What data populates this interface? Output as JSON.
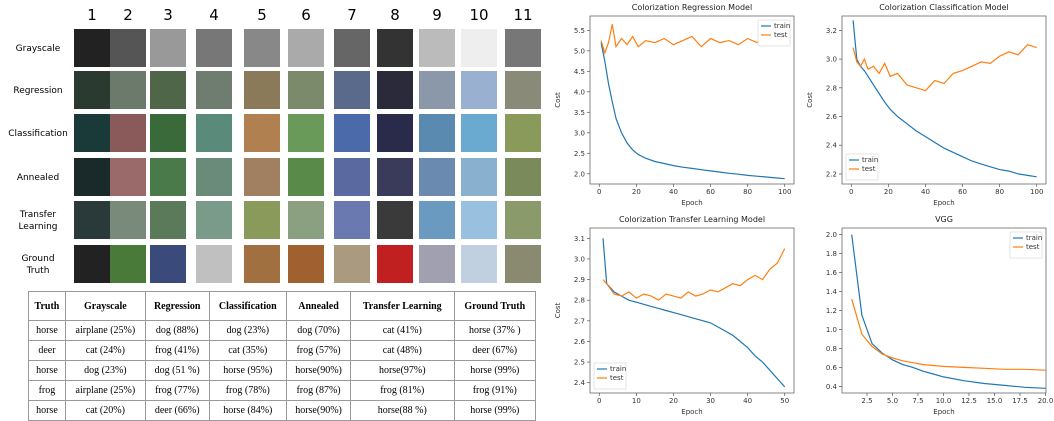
{
  "figure": {
    "column_numbers": [
      1,
      2,
      3,
      4,
      5,
      6,
      7,
      8,
      9,
      10,
      11
    ],
    "row_labels": [
      "Grayscale",
      "Regression",
      "Classification",
      "Annealed",
      "Transfer Learning",
      "Ground Truth"
    ]
  },
  "table": {
    "header": [
      "Truth",
      "Grayscale",
      "Regression",
      "Classification",
      "Annealed",
      "Transfer Learning",
      "Ground Truth"
    ],
    "rows": [
      [
        "horse",
        "airplane (25%)",
        "dog (88%)",
        "dog (23%)",
        "dog (70%)",
        "cat (41%)",
        "horse (37% )"
      ],
      [
        "deer",
        "cat (24%)",
        "frog (41%)",
        "cat (35%)",
        "frog (57%)",
        "cat (48%)",
        "deer (67%)"
      ],
      [
        "horse",
        "dog (23%)",
        "dog (51 %)",
        "horse (95%)",
        "horse(90%)",
        "horse(97%)",
        "horse (99%)"
      ],
      [
        "frog",
        "airplane (25%)",
        "frog (77%)",
        "frog (78%)",
        "frog (87%)",
        "frog (81%)",
        "frog (91%)"
      ],
      [
        "horse",
        "cat (20%)",
        "deer (66%)",
        "horse (84%)",
        "horse(90%)",
        "horse(88 %)",
        "horse (99%)"
      ]
    ]
  },
  "chart_data": [
    {
      "type": "line",
      "title": "Colorization Regression Model",
      "x_label": "Epoch",
      "y_label": "Cost",
      "legend": "upper right",
      "xlim": [
        -5,
        105
      ],
      "ylim": [
        1.75,
        5.85
      ],
      "xticks": [
        0,
        20,
        40,
        60,
        80,
        100
      ],
      "yticks": [
        {
          "value": 2,
          "label": "2.0"
        },
        2.5,
        {
          "value": 3,
          "label": "3.0"
        },
        3.5,
        {
          "value": 4,
          "label": "4.0"
        },
        4.5,
        {
          "value": 5,
          "label": "5.0"
        },
        5.5
      ],
      "x": [
        1,
        3,
        5,
        7,
        9,
        12,
        15,
        18,
        21,
        25,
        30,
        35,
        40,
        45,
        50,
        55,
        60,
        65,
        70,
        75,
        80,
        85,
        90,
        95,
        100
      ],
      "series": [
        {
          "name": "train",
          "color": "#1f77b4",
          "values": [
            5.2,
            4.75,
            4.2,
            3.75,
            3.35,
            3.0,
            2.75,
            2.58,
            2.47,
            2.38,
            2.3,
            2.25,
            2.2,
            2.16,
            2.13,
            2.1,
            2.07,
            2.04,
            2.01,
            1.99,
            1.96,
            1.94,
            1.92,
            1.9,
            1.88
          ]
        },
        {
          "name": "test",
          "color": "#ff7f0e",
          "values": [
            5.25,
            4.95,
            5.2,
            5.65,
            5.1,
            5.3,
            5.15,
            5.35,
            5.1,
            5.25,
            5.2,
            5.3,
            5.15,
            5.25,
            5.35,
            5.1,
            5.3,
            5.2,
            5.25,
            5.15,
            5.3,
            5.2,
            5.35,
            5.2,
            5.15
          ]
        }
      ]
    },
    {
      "type": "line",
      "title": "Colorization Classification Model",
      "x_label": "Epoch",
      "y_label": "Cost",
      "legend": "lower left",
      "xlim": [
        -5,
        105
      ],
      "ylim": [
        2.13,
        3.3
      ],
      "xticks": [
        0,
        20,
        40,
        60,
        80,
        100
      ],
      "yticks": [
        2.2,
        2.4,
        2.6,
        2.8,
        {
          "value": 3,
          "label": "3.0"
        },
        3.2
      ],
      "x": [
        1,
        3,
        5,
        7,
        9,
        12,
        15,
        18,
        21,
        25,
        30,
        35,
        40,
        45,
        50,
        55,
        60,
        65,
        70,
        75,
        80,
        85,
        90,
        95,
        100
      ],
      "series": [
        {
          "name": "train",
          "color": "#1f77b4",
          "values": [
            3.27,
            3.0,
            2.95,
            2.92,
            2.88,
            2.82,
            2.76,
            2.7,
            2.65,
            2.6,
            2.55,
            2.5,
            2.46,
            2.42,
            2.38,
            2.35,
            2.32,
            2.29,
            2.27,
            2.25,
            2.23,
            2.22,
            2.2,
            2.19,
            2.18
          ]
        },
        {
          "name": "test",
          "color": "#ff7f0e",
          "values": [
            3.08,
            2.98,
            2.95,
            3.0,
            2.93,
            2.95,
            2.9,
            2.97,
            2.88,
            2.9,
            2.82,
            2.8,
            2.78,
            2.85,
            2.83,
            2.9,
            2.92,
            2.95,
            2.98,
            2.97,
            3.02,
            3.05,
            3.03,
            3.1,
            3.08
          ]
        }
      ]
    },
    {
      "type": "line",
      "title": "Colorization Transfer Learning Model",
      "x_label": "Epoch",
      "y_label": "Cost",
      "legend": "lower left",
      "xlim": [
        -2.5,
        52.5
      ],
      "ylim": [
        2.35,
        3.15
      ],
      "xticks": [
        0,
        10,
        20,
        30,
        40,
        50
      ],
      "yticks": [
        2.4,
        2.5,
        2.6,
        2.7,
        2.8,
        2.9,
        {
          "value": 3,
          "label": "3.0"
        },
        3.1
      ],
      "x": [
        1,
        2,
        4,
        6,
        8,
        10,
        12,
        14,
        16,
        18,
        20,
        22,
        24,
        26,
        28,
        30,
        32,
        34,
        36,
        38,
        40,
        42,
        44,
        46,
        48,
        50
      ],
      "series": [
        {
          "name": "train",
          "color": "#1f77b4",
          "values": [
            3.1,
            2.88,
            2.84,
            2.82,
            2.8,
            2.79,
            2.78,
            2.77,
            2.76,
            2.75,
            2.74,
            2.73,
            2.72,
            2.71,
            2.7,
            2.69,
            2.67,
            2.65,
            2.63,
            2.6,
            2.57,
            2.53,
            2.5,
            2.46,
            2.42,
            2.38
          ]
        },
        {
          "name": "test",
          "color": "#ff7f0e",
          "values": [
            2.9,
            2.88,
            2.83,
            2.82,
            2.84,
            2.81,
            2.83,
            2.82,
            2.8,
            2.83,
            2.82,
            2.81,
            2.84,
            2.82,
            2.83,
            2.85,
            2.84,
            2.86,
            2.88,
            2.87,
            2.9,
            2.92,
            2.9,
            2.95,
            2.98,
            3.05
          ]
        }
      ]
    },
    {
      "type": "line",
      "title": "VGG",
      "x_label": "Epoch",
      "legend": "upper right",
      "xlim": [
        0.05,
        20.05
      ],
      "ylim": [
        0.33,
        2.07
      ],
      "xticks": [
        2.5,
        {
          "value": 5,
          "label": "5.0"
        },
        7.5,
        {
          "value": 10,
          "label": "10.0"
        },
        12.5,
        {
          "value": 15,
          "label": "15.0"
        },
        17.5,
        {
          "value": 20,
          "label": "20.0"
        }
      ],
      "yticks": [
        0.4,
        0.6,
        0.8,
        {
          "value": 1,
          "label": "1.0"
        },
        1.2,
        1.4,
        1.6,
        1.8,
        {
          "value": 2,
          "label": "2.0"
        }
      ],
      "x": [
        1,
        2,
        3,
        4,
        5,
        6,
        7,
        8,
        9,
        10,
        12,
        14,
        16,
        18,
        20
      ],
      "series": [
        {
          "name": "train",
          "color": "#1f77b4",
          "values": [
            2.0,
            1.15,
            0.85,
            0.75,
            0.68,
            0.63,
            0.6,
            0.56,
            0.53,
            0.5,
            0.46,
            0.43,
            0.41,
            0.39,
            0.38
          ]
        },
        {
          "name": "test",
          "color": "#ff7f0e",
          "values": [
            1.32,
            0.95,
            0.82,
            0.74,
            0.7,
            0.67,
            0.65,
            0.63,
            0.62,
            0.61,
            0.6,
            0.59,
            0.58,
            0.58,
            0.57
          ]
        }
      ]
    }
  ]
}
